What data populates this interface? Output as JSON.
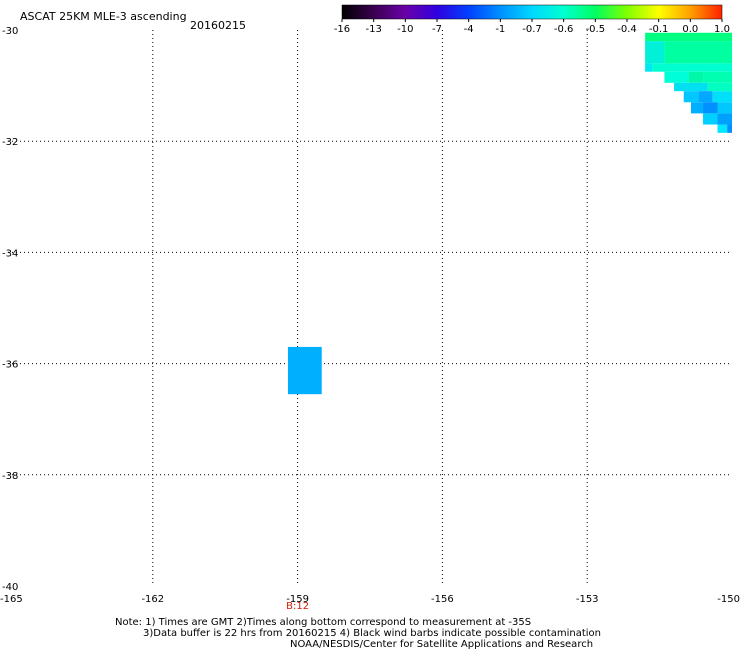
{
  "chart_data": {
    "type": "heatmap",
    "title": "ASCAT 25KM MLE-3 ascending",
    "date": "20160215",
    "xlim": [
      -165,
      -150
    ],
    "ylim": [
      -40,
      -30
    ],
    "x_ticks": [
      -165,
      -162,
      -159,
      -156,
      -153,
      -150
    ],
    "y_ticks": [
      -30,
      -32,
      -34,
      -36,
      -38,
      -40
    ],
    "x_tick_labels": [
      "-165",
      "-162",
      "-159",
      "-156",
      "-153",
      "-150"
    ],
    "y_tick_labels": [
      "-30",
      "-32",
      "-34",
      "-36",
      "-38",
      "-40"
    ],
    "grid": true,
    "colorbar": {
      "labels": [
        "-16",
        "-13",
        "-10",
        "-7",
        "-4",
        "-1",
        "-0.7",
        "-0.6",
        "-0.5",
        "-0.4",
        "-0.1",
        "0.0",
        "1.0"
      ],
      "colors": [
        "#000000",
        "#3a0050",
        "#6a00a8",
        "#3000e0",
        "#0040ff",
        "#0090ff",
        "#00d8ff",
        "#00ffd0",
        "#00ff60",
        "#80ff00",
        "#ffff00",
        "#ffa000",
        "#ff2000"
      ]
    },
    "cells": [
      {
        "lon": [
          -159.2,
          -158.5
        ],
        "lat": [
          -36.55,
          -35.7
        ],
        "color": "#00b0ff"
      },
      {
        "lon": [
          -151.8,
          -150.0
        ],
        "lat": [
          -30.2,
          -30.05
        ],
        "color": "#00ff80"
      },
      {
        "lon": [
          -151.8,
          -151.4
        ],
        "lat": [
          -30.6,
          -30.2
        ],
        "color": "#00f0d8"
      },
      {
        "lon": [
          -151.4,
          -150.0
        ],
        "lat": [
          -30.6,
          -30.2
        ],
        "color": "#00ffa0"
      },
      {
        "lon": [
          -151.8,
          -151.65
        ],
        "lat": [
          -30.75,
          -30.6
        ],
        "color": "#00e8f0"
      },
      {
        "lon": [
          -151.65,
          -150.0
        ],
        "lat": [
          -30.75,
          -30.6
        ],
        "color": "#00ffd0"
      },
      {
        "lon": [
          -151.4,
          -150.9
        ],
        "lat": [
          -30.95,
          -30.75
        ],
        "color": "#00ffd8"
      },
      {
        "lon": [
          -150.9,
          -150.6
        ],
        "lat": [
          -30.95,
          -30.75
        ],
        "color": "#00f8a8"
      },
      {
        "lon": [
          -150.6,
          -150.0
        ],
        "lat": [
          -30.95,
          -30.75
        ],
        "color": "#00ffb0"
      },
      {
        "lon": [
          -151.2,
          -150.5
        ],
        "lat": [
          -31.1,
          -30.95
        ],
        "color": "#00e0f0"
      },
      {
        "lon": [
          -150.5,
          -150.0
        ],
        "lat": [
          -31.1,
          -30.95
        ],
        "color": "#00ffc0"
      },
      {
        "lon": [
          -151.0,
          -150.7
        ],
        "lat": [
          -31.3,
          -31.1
        ],
        "color": "#00c8ff"
      },
      {
        "lon": [
          -150.7,
          -150.4
        ],
        "lat": [
          -31.3,
          -31.1
        ],
        "color": "#00a8ff"
      },
      {
        "lon": [
          -150.4,
          -150.0
        ],
        "lat": [
          -31.3,
          -31.1
        ],
        "color": "#00e0f8"
      },
      {
        "lon": [
          -150.85,
          -150.6
        ],
        "lat": [
          -31.5,
          -31.3
        ],
        "color": "#00b0ff"
      },
      {
        "lon": [
          -150.6,
          -150.3
        ],
        "lat": [
          -31.5,
          -31.3
        ],
        "color": "#0090ff"
      },
      {
        "lon": [
          -150.3,
          -150.0
        ],
        "lat": [
          -31.5,
          -31.3
        ],
        "color": "#00c8ff"
      },
      {
        "lon": [
          -150.6,
          -150.3
        ],
        "lat": [
          -31.7,
          -31.5
        ],
        "color": "#00d0ff"
      },
      {
        "lon": [
          -150.3,
          -150.0
        ],
        "lat": [
          -31.7,
          -31.5
        ],
        "color": "#00a0ff"
      },
      {
        "lon": [
          -150.3,
          -150.1
        ],
        "lat": [
          -31.85,
          -31.7
        ],
        "color": "#00e8ff"
      },
      {
        "lon": [
          -150.1,
          -150.0
        ],
        "lat": [
          -31.85,
          -31.7
        ],
        "color": "#0090ff"
      }
    ],
    "annotations": [
      {
        "text": "B:12",
        "lon": -159.0,
        "lat": -40.2,
        "color": "#cc2200"
      }
    ]
  },
  "notes": [
    "Note: 1) Times are GMT 2)Times along bottom correspond to measurement at -35S",
    "3)Data buffer is 22 hrs from 20160215 4) Black wind barbs indicate possible contamination",
    "NOAA/NESDIS/Center for Satellite Applications and Research"
  ]
}
